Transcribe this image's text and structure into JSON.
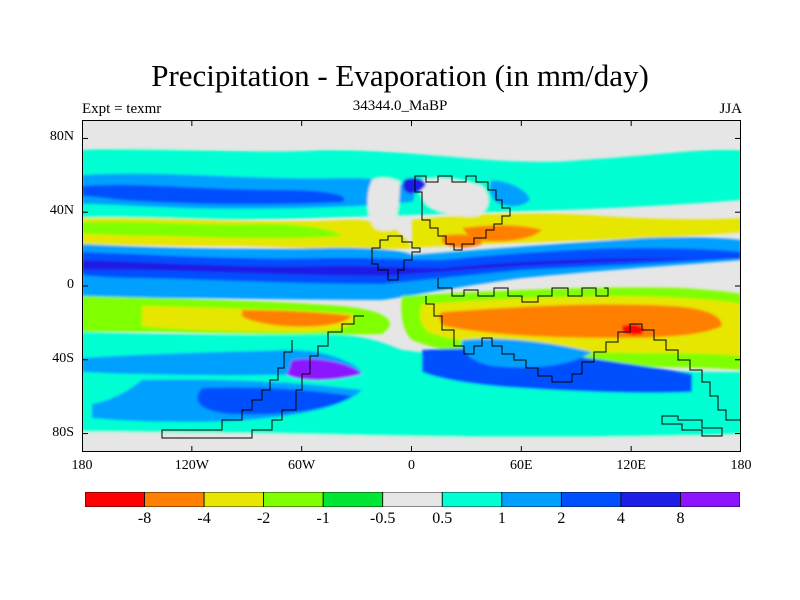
{
  "title": "Precipitation - Evaporation (in mm/day)",
  "left_label": "Expt = texmr",
  "center_label": "34344.0_MaBP",
  "right_label": "JJA",
  "y_axis": {
    "ticks": [
      {
        "label": "80N",
        "lat": 80
      },
      {
        "label": "40N",
        "lat": 40
      },
      {
        "label": "0",
        "lat": 0
      },
      {
        "label": "40S",
        "lat": -40
      },
      {
        "label": "80S",
        "lat": -80
      }
    ],
    "range": [
      -90,
      90
    ]
  },
  "x_axis": {
    "ticks": [
      {
        "label": "180",
        "lon": -180
      },
      {
        "label": "120W",
        "lon": -120
      },
      {
        "label": "60W",
        "lon": -60
      },
      {
        "label": "0",
        "lon": 0
      },
      {
        "label": "60E",
        "lon": 60
      },
      {
        "label": "120E",
        "lon": 120
      },
      {
        "label": "180",
        "lon": 180
      }
    ],
    "range": [
      -180,
      180
    ]
  },
  "colorbar": {
    "colors": [
      "#ff0000",
      "#ff8000",
      "#e6e600",
      "#80ff00",
      "#00e632",
      "#e6e6e6",
      "#00ffd2",
      "#00a0ff",
      "#0050ff",
      "#1e1ee6",
      "#8c14ff"
    ],
    "labels": [
      "-8",
      "-4",
      "-2",
      "-1",
      "-0.5",
      "0.5",
      "1",
      "2",
      "4",
      "8"
    ]
  },
  "colors": {
    "background_field": "#e6e6e6"
  }
}
